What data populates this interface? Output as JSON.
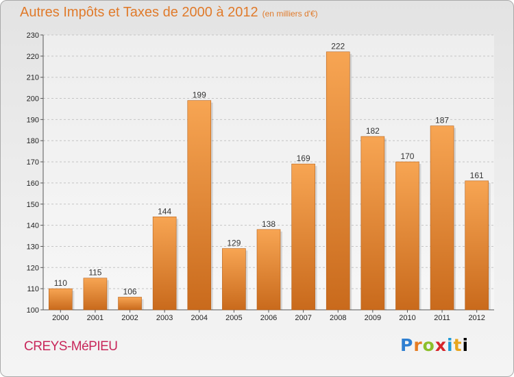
{
  "header": {
    "title": "Autres Impôts et Taxes de 2000 à 2012",
    "unit": "(en milliers d'€)"
  },
  "footer": {
    "commune": "CREYS-MéPIEU",
    "logo_letters": [
      "P",
      "r",
      "o",
      "x",
      "i",
      "t",
      "i"
    ]
  },
  "chart_data": {
    "type": "bar",
    "title": "Autres Impôts et Taxes de 2000 à 2012",
    "subtitle": "(en milliers d'€)",
    "xlabel": "",
    "ylabel": "",
    "categories": [
      "2000",
      "2001",
      "2002",
      "2003",
      "2004",
      "2005",
      "2006",
      "2007",
      "2008",
      "2009",
      "2010",
      "2011",
      "2012"
    ],
    "values": [
      110,
      115,
      106,
      144,
      199,
      129,
      138,
      169,
      222,
      182,
      170,
      187,
      161
    ],
    "ylim": [
      100,
      230
    ],
    "yticks": [
      100,
      110,
      120,
      130,
      140,
      150,
      160,
      170,
      180,
      190,
      200,
      210,
      220,
      230
    ],
    "grid": "horizontal dashed",
    "bar_color_top": "#f7a553",
    "bar_color_bottom": "#c96a1c",
    "title_color": "#e07a2a",
    "commune_color": "#c8265a"
  }
}
